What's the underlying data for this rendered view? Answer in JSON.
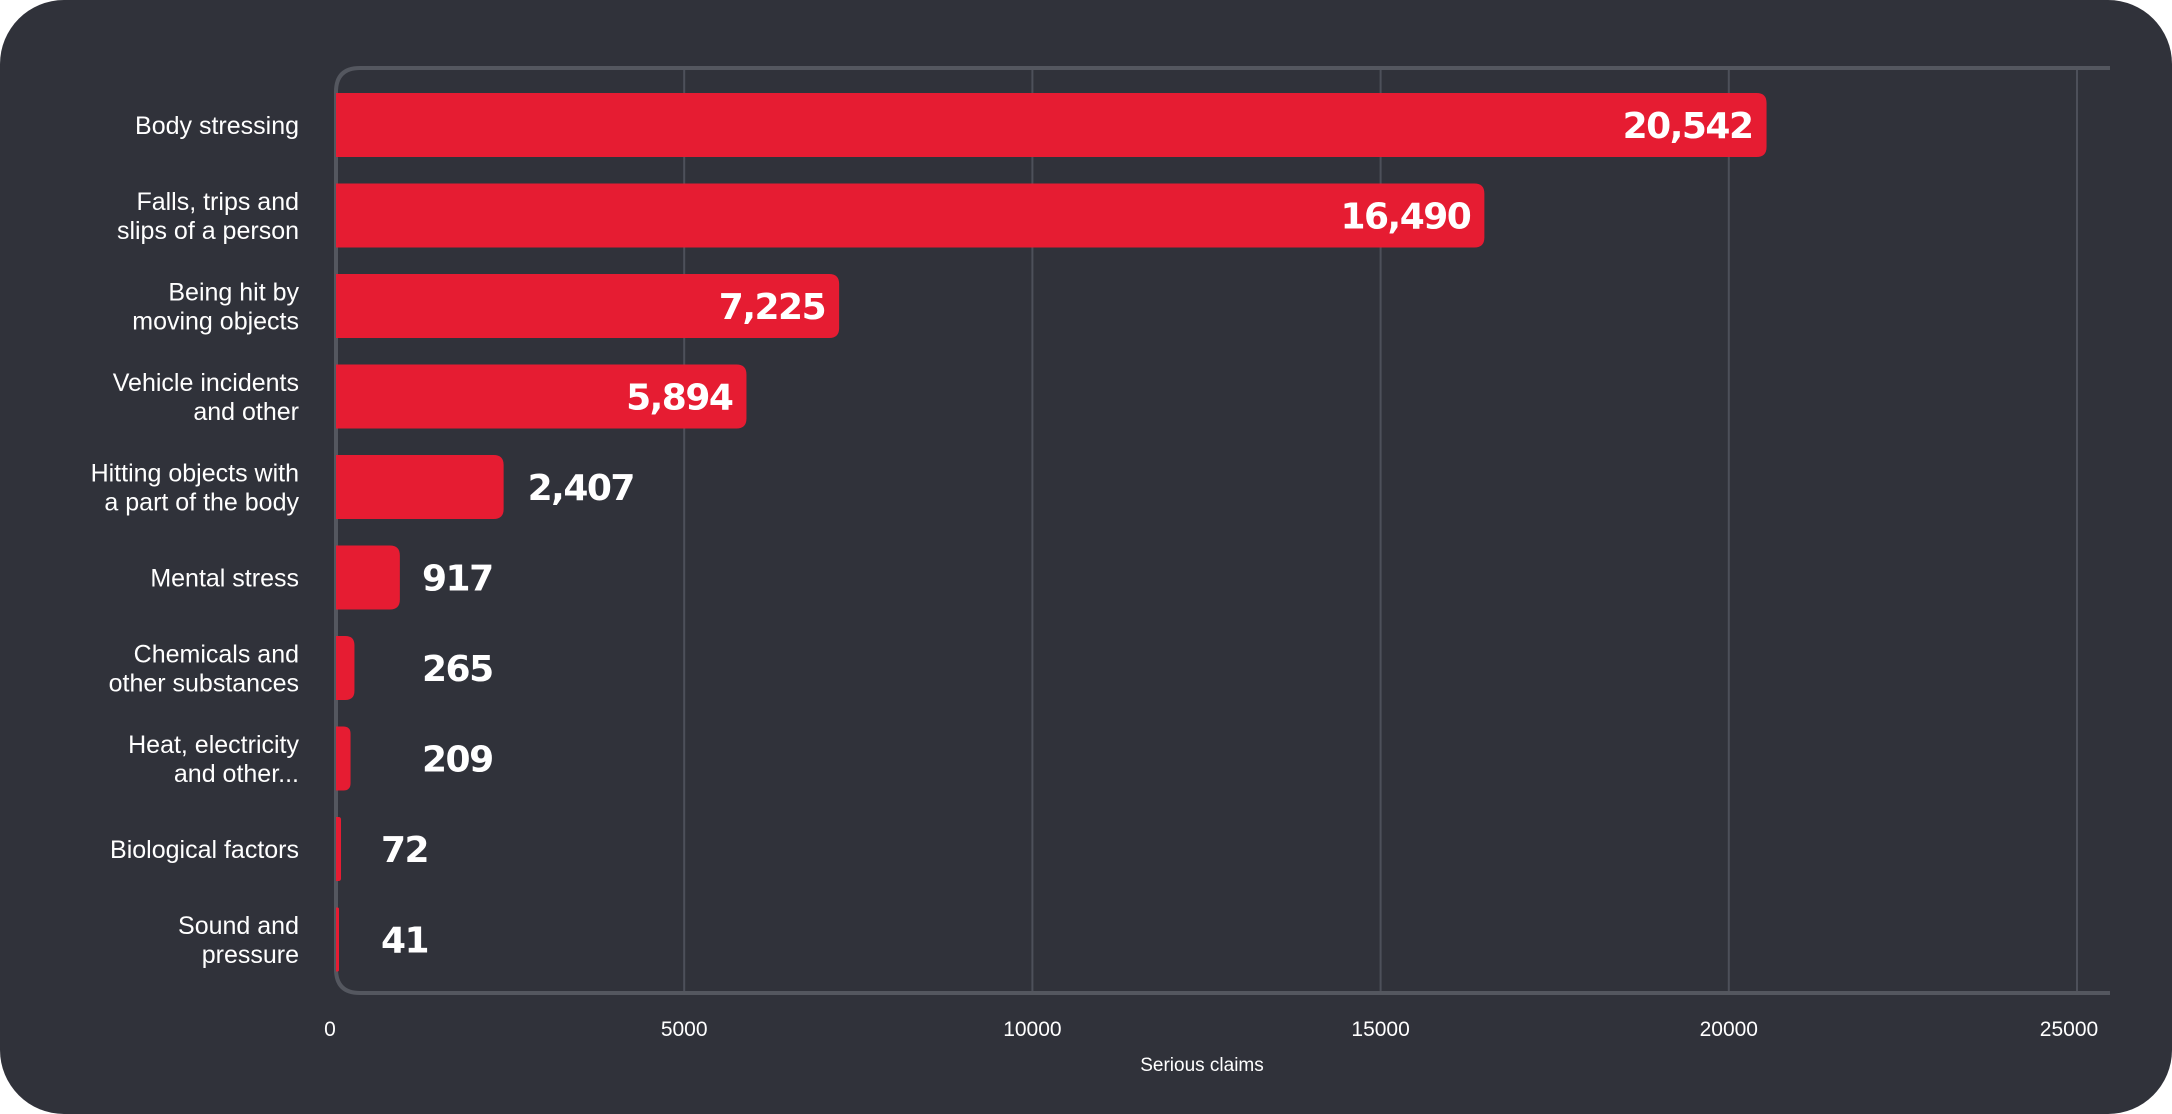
{
  "chart_data": {
    "type": "bar",
    "orientation": "horizontal",
    "categories": [
      [
        "Body stressing"
      ],
      [
        "Falls, trips and",
        "slips of a person"
      ],
      [
        "Being hit by",
        "moving objects"
      ],
      [
        "Vehicle incidents",
        "and other"
      ],
      [
        "Hitting objects with",
        "a part of the body"
      ],
      [
        "Mental stress"
      ],
      [
        "Chemicals and",
        "other substances"
      ],
      [
        "Heat, electricity",
        "and other..."
      ],
      [
        "Biological factors"
      ],
      [
        "Sound and",
        "pressure"
      ]
    ],
    "values": [
      20542,
      16490,
      7225,
      5894,
      2407,
      917,
      265,
      209,
      72,
      41
    ],
    "value_labels": [
      "20,542",
      "16,490",
      "7,225",
      "5,894",
      "2,407",
      "917",
      "265",
      "209",
      "72",
      "41"
    ],
    "xlabel": "Serious claims",
    "xlim": [
      0,
      25000
    ],
    "xticks": [
      "0",
      "5000",
      "10000",
      "15000",
      "20000",
      "25000"
    ],
    "grid": true,
    "colors": {
      "background": "#30323a",
      "bar": "#e61c32",
      "grid": "#4d505a",
      "axis": "#54575f",
      "text": "#ffffff"
    }
  }
}
